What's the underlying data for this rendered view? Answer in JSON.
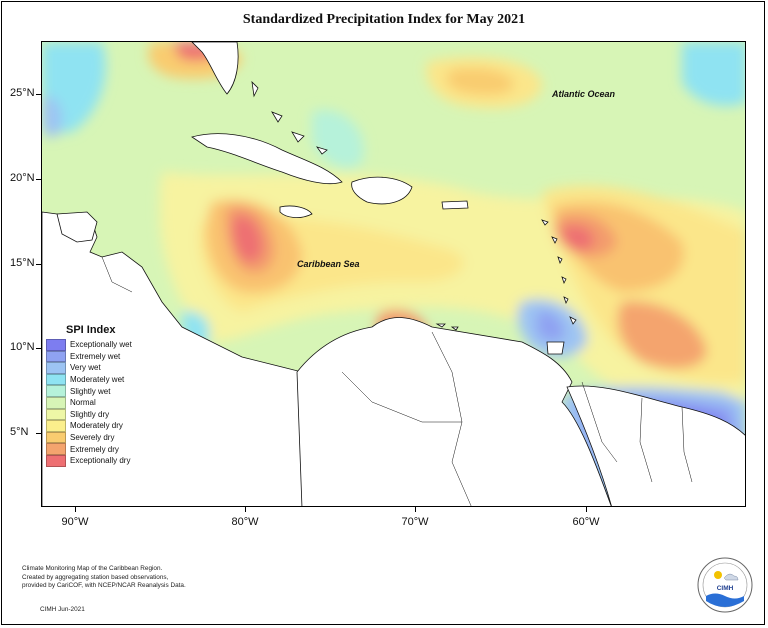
{
  "title": "Standardized Precipitation Index for May 2021",
  "map": {
    "ocean_labels": {
      "atlantic": "Atlantic Ocean",
      "caribbean": "Caribbean Sea"
    },
    "lat_labels": [
      "25°N",
      "20°N",
      "15°N",
      "10°N",
      "5°N"
    ],
    "lon_labels": [
      "90°W",
      "80°W",
      "70°W",
      "60°W"
    ]
  },
  "legend": {
    "title": "SPI Index",
    "items": [
      {
        "label": "Exceptionally wet",
        "color": "#7d7df0"
      },
      {
        "label": "Extremely wet",
        "color": "#8fa2f2"
      },
      {
        "label": "Very wet",
        "color": "#9dc4f3"
      },
      {
        "label": "Moderately wet",
        "color": "#8fe3f2"
      },
      {
        "label": "Slightly wet",
        "color": "#b6f2da"
      },
      {
        "label": "Normal",
        "color": "#d7f5b6"
      },
      {
        "label": "Slightly dry",
        "color": "#eef7a6"
      },
      {
        "label": "Moderately dry",
        "color": "#fbef8c"
      },
      {
        "label": "Severely dry",
        "color": "#f9cc70"
      },
      {
        "label": "Extremely dry",
        "color": "#f4a46e"
      },
      {
        "label": "Exceptionally dry",
        "color": "#ee6f72"
      }
    ]
  },
  "footnote": {
    "line1": "Climate Monitoring Map of the Caribbean Region.",
    "line2": "Created by aggregating station based observations,",
    "line3": "provided by CariCOF, with NCEP/NCAR Reanalysis Data."
  },
  "credit": "CIMH  Jun-2021",
  "logo": {
    "text": "CIMH",
    "icon": "cimh-logo-icon"
  }
}
